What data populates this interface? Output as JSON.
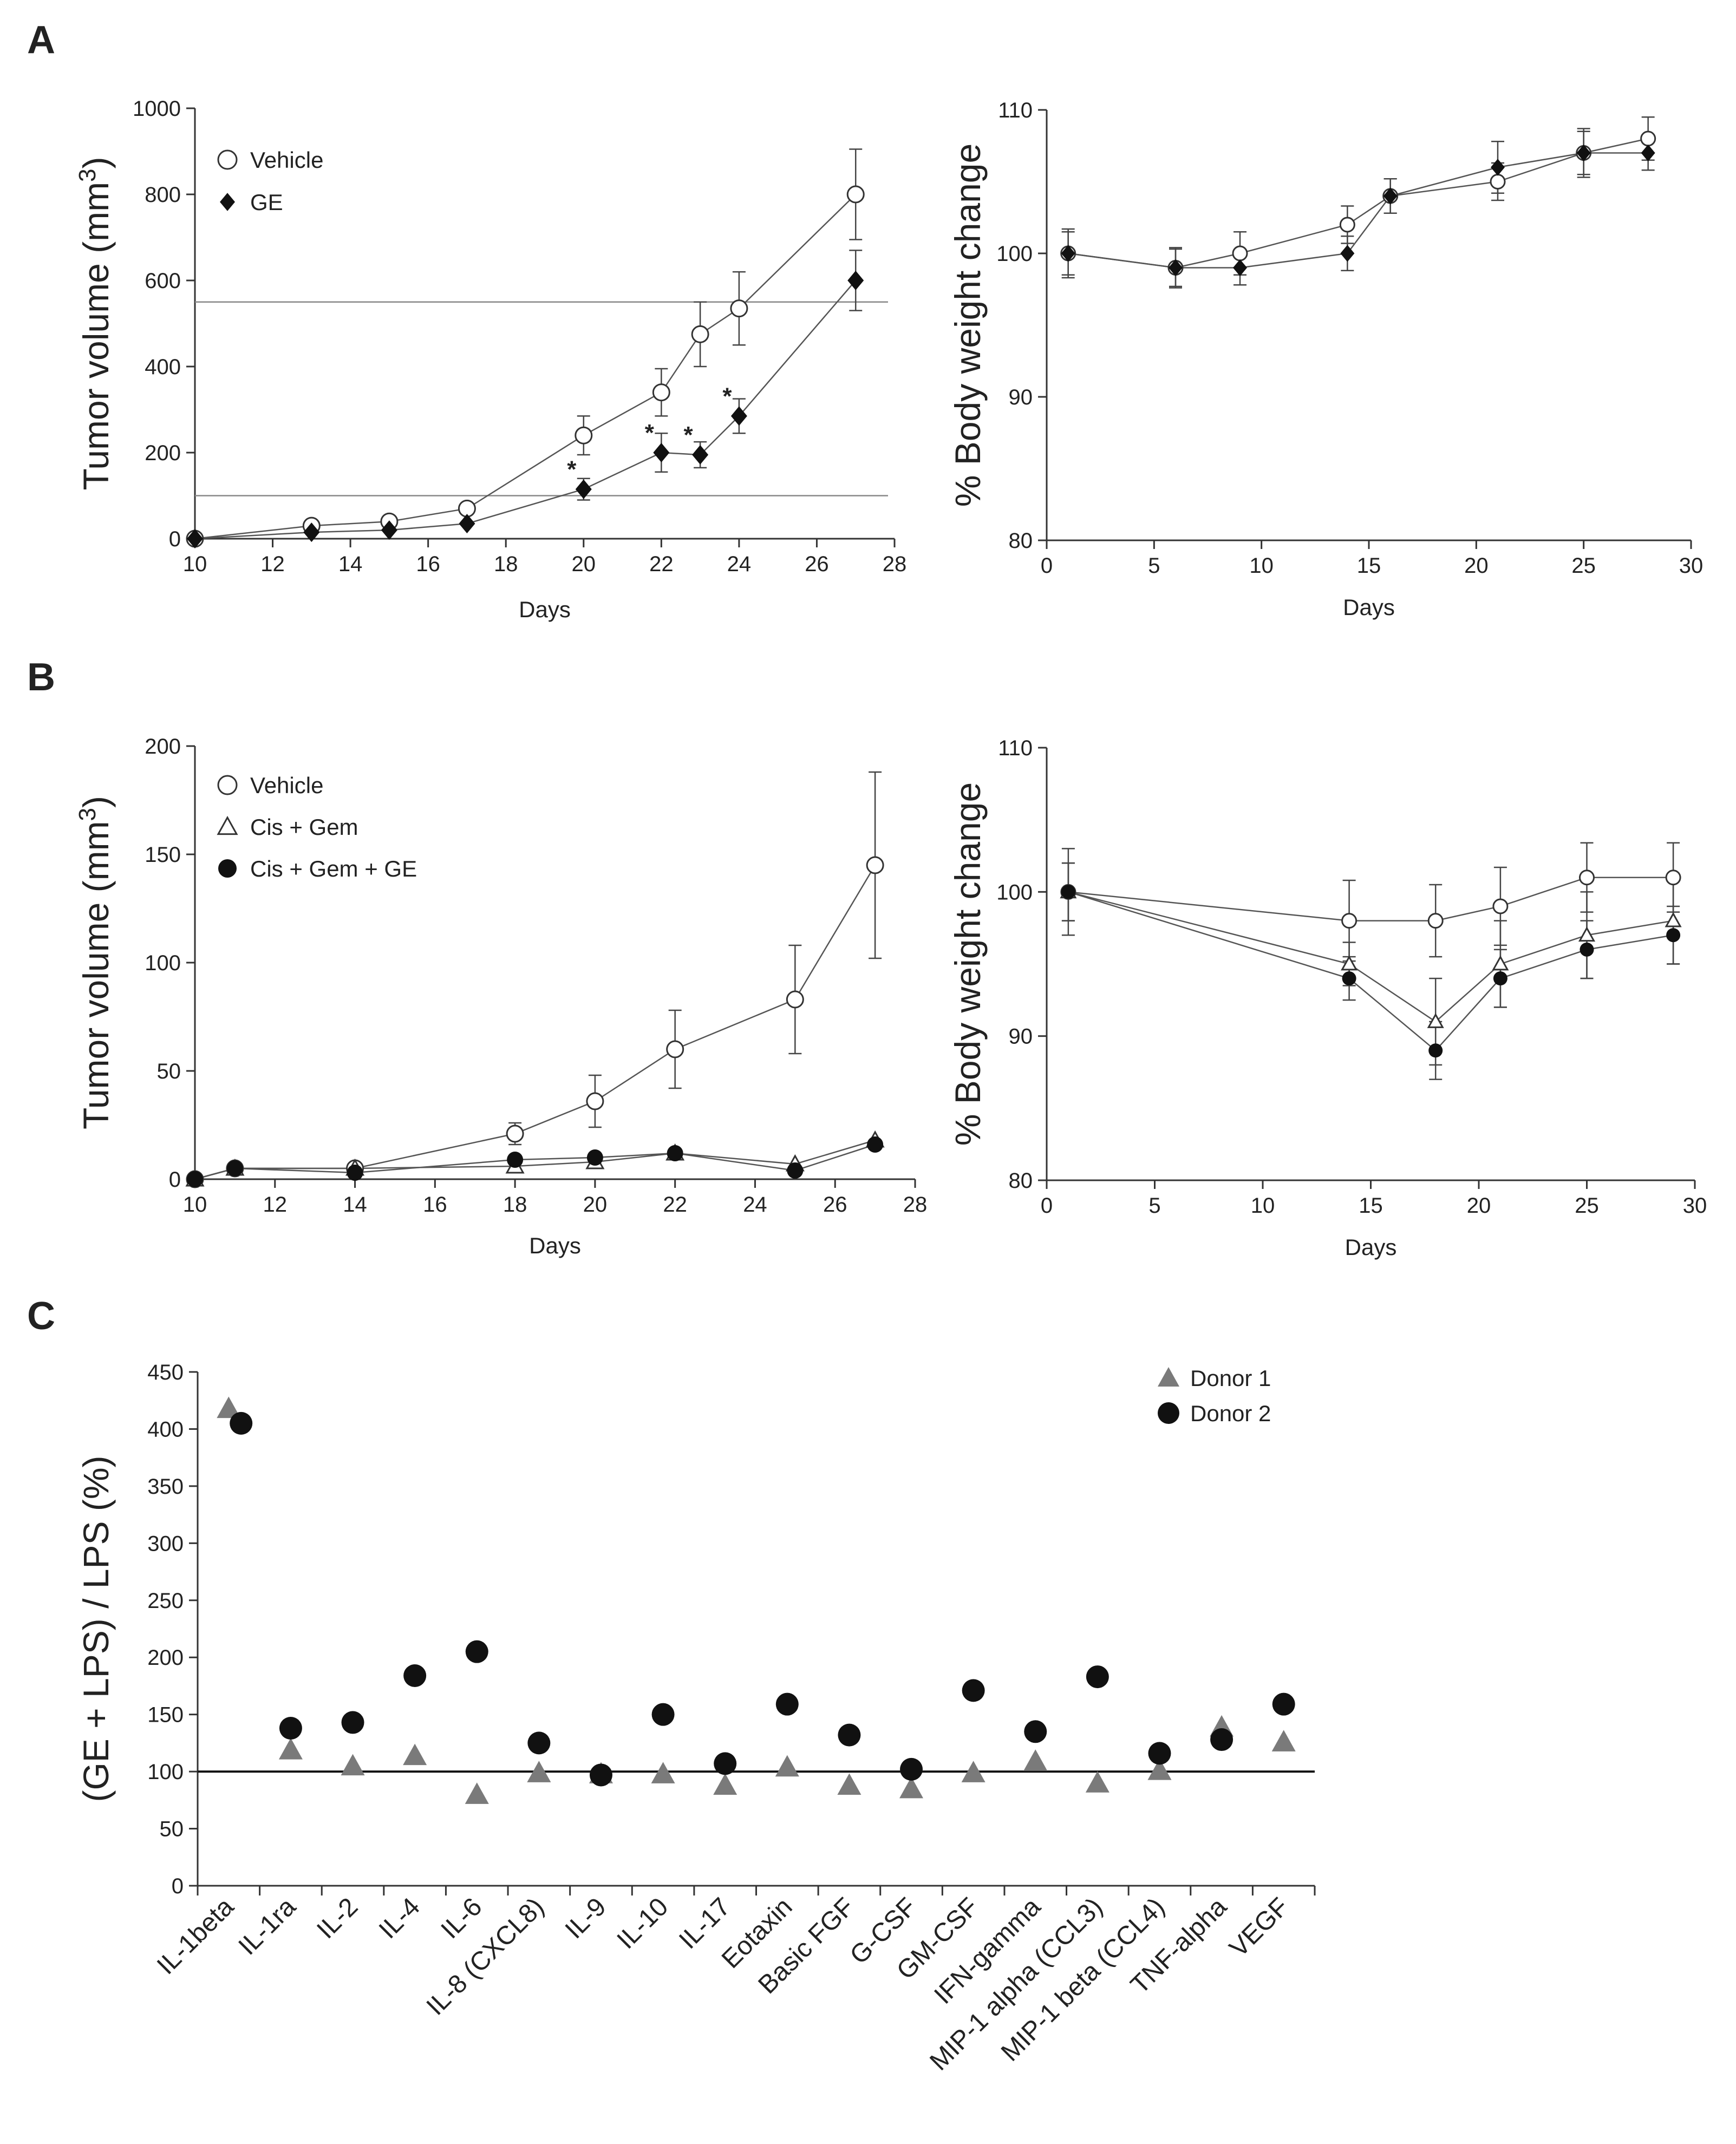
{
  "panel_labels": {
    "a": "A",
    "b": "B",
    "c": "C"
  },
  "chart_data": [
    {
      "id": "a1",
      "type": "line",
      "xlabel": "Days",
      "ylabel": "Tumor volume (mm",
      "ylabel_sup": "3",
      "ylabel_end": ")",
      "xlim": [
        10,
        28
      ],
      "ylim": [
        0,
        1000
      ],
      "xticks": [
        10,
        12,
        14,
        16,
        18,
        20,
        22,
        24,
        26,
        28
      ],
      "yticks": [
        0,
        200,
        400,
        600,
        800,
        1000
      ],
      "reference_lines": [
        550,
        100
      ],
      "legend": [
        {
          "label": "Vehicle",
          "marker": "open-circle"
        },
        {
          "label": "GE",
          "marker": "filled-diamond"
        }
      ],
      "series": [
        {
          "name": "Vehicle",
          "marker": "open-circle",
          "x": [
            10,
            13,
            15,
            17,
            20,
            22,
            23,
            24,
            27
          ],
          "y": [
            0,
            30,
            40,
            70,
            240,
            340,
            475,
            535,
            800
          ],
          "err": [
            0,
            0,
            0,
            0,
            45,
            55,
            75,
            85,
            105
          ]
        },
        {
          "name": "GE",
          "marker": "filled-diamond",
          "x": [
            10,
            13,
            15,
            17,
            20,
            22,
            23,
            24,
            27
          ],
          "y": [
            0,
            15,
            20,
            35,
            115,
            200,
            195,
            285,
            600
          ],
          "err": [
            0,
            0,
            0,
            0,
            25,
            45,
            30,
            40,
            70
          ]
        }
      ],
      "annotations": [
        {
          "text": "*",
          "x": 20,
          "y": 115
        },
        {
          "text": "*",
          "x": 22,
          "y": 200
        },
        {
          "text": "*",
          "x": 23,
          "y": 195
        },
        {
          "text": "*",
          "x": 24,
          "y": 285
        }
      ]
    },
    {
      "id": "a2",
      "type": "line",
      "xlabel": "Days",
      "ylabel": "% Body weight change",
      "xlim": [
        0,
        30
      ],
      "ylim": [
        80,
        110
      ],
      "xticks": [
        0,
        5,
        10,
        15,
        20,
        25,
        30
      ],
      "yticks": [
        80,
        90,
        100,
        110
      ],
      "series": [
        {
          "name": "Vehicle",
          "marker": "open-circle",
          "x": [
            1,
            6,
            9,
            14,
            16,
            21,
            25,
            28
          ],
          "y": [
            100,
            99,
            100,
            102,
            104,
            105,
            107,
            108
          ],
          "err": [
            1.5,
            1.3,
            1.5,
            1.3,
            1.2,
            1.3,
            1.5,
            1.5
          ]
        },
        {
          "name": "GE",
          "marker": "filled-diamond",
          "x": [
            1,
            6,
            9,
            14,
            16,
            21,
            25,
            28
          ],
          "y": [
            100,
            99,
            99,
            100,
            104,
            106,
            107,
            107
          ],
          "err": [
            1.7,
            1.4,
            1.2,
            1.2,
            1.2,
            1.8,
            1.7,
            1.2
          ]
        }
      ]
    },
    {
      "id": "b1",
      "type": "line",
      "xlabel": "Days",
      "ylabel": "Tumor volume (mm",
      "ylabel_sup": "3",
      "ylabel_end": ")",
      "xlim": [
        10,
        28
      ],
      "ylim": [
        0,
        200
      ],
      "xticks": [
        10,
        12,
        14,
        16,
        18,
        20,
        22,
        24,
        26,
        28
      ],
      "yticks": [
        0,
        50,
        100,
        150,
        200
      ],
      "legend": [
        {
          "label": "Vehicle",
          "marker": "open-circle"
        },
        {
          "label": "Cis + Gem",
          "marker": "open-triangle"
        },
        {
          "label": "Cis + Gem + GE",
          "marker": "filled-circle"
        }
      ],
      "series": [
        {
          "name": "Vehicle",
          "marker": "open-circle",
          "x": [
            10,
            11,
            14,
            18,
            20,
            22,
            25,
            27
          ],
          "y": [
            0,
            5,
            5,
            21,
            36,
            60,
            83,
            145
          ],
          "err": [
            0,
            0,
            0,
            5,
            12,
            18,
            25,
            43
          ]
        },
        {
          "name": "Cis + Gem",
          "marker": "open-triangle",
          "x": [
            10,
            11,
            14,
            18,
            20,
            22,
            25,
            27
          ],
          "y": [
            0,
            5,
            5,
            6,
            8,
            12,
            7,
            18
          ],
          "err": [
            0,
            0,
            0,
            0,
            0,
            0,
            0,
            0
          ]
        },
        {
          "name": "Cis + Gem + GE",
          "marker": "filled-circle",
          "x": [
            10,
            11,
            14,
            18,
            20,
            22,
            25,
            27
          ],
          "y": [
            0,
            5,
            3,
            9,
            10,
            12,
            4,
            16
          ],
          "err": [
            0,
            0,
            0,
            0,
            0,
            0,
            0,
            0
          ]
        }
      ]
    },
    {
      "id": "b2",
      "type": "line",
      "xlabel": "Days",
      "ylabel": "% Body weight change",
      "xlim": [
        0,
        30
      ],
      "ylim": [
        80,
        110
      ],
      "xticks": [
        0,
        5,
        10,
        15,
        20,
        25,
        30
      ],
      "yticks": [
        80,
        90,
        100,
        110
      ],
      "series": [
        {
          "name": "Vehicle",
          "marker": "open-circle",
          "x": [
            1,
            14,
            18,
            21,
            25,
            29
          ],
          "y": [
            100,
            98,
            98,
            99,
            101,
            101
          ],
          "err": [
            3,
            2.8,
            2.5,
            2.7,
            2.4,
            2.4
          ]
        },
        {
          "name": "Cis + Gem",
          "marker": "open-triangle",
          "x": [
            1,
            14,
            18,
            21,
            25,
            29
          ],
          "y": [
            100,
            95,
            91,
            95,
            97,
            98
          ],
          "err": [
            2,
            1.5,
            3,
            3,
            3,
            3
          ]
        },
        {
          "name": "Cis + Gem + GE",
          "marker": "filled-circle",
          "x": [
            1,
            14,
            18,
            21,
            25,
            29
          ],
          "y": [
            100,
            94,
            89,
            94,
            96,
            97
          ],
          "err": [
            2,
            1.5,
            2,
            2,
            2,
            2
          ]
        }
      ]
    },
    {
      "id": "c",
      "type": "scatter",
      "ylabel": "(GE + LPS) / LPS   (%)",
      "ylim": [
        0,
        450
      ],
      "yticks": [
        0,
        50,
        100,
        150,
        200,
        250,
        300,
        350,
        400,
        450
      ],
      "reference_line": 100,
      "categories": [
        "IL-1beta",
        "IL-1ra",
        "IL-2",
        "IL-4",
        "IL-6",
        "IL-8 (CXCL8)",
        "IL-9",
        "IL-10",
        "IL-17",
        "Eotaxin",
        "Basic FGF",
        "G-CSF",
        "GM-CSF",
        "IFN-gamma",
        "MIP-1 alpha (CCL3)",
        "MIP-1 beta (CCL4)",
        "TNF-alpha",
        "VEGF"
      ],
      "legend": [
        {
          "label": "Donor  1",
          "marker": "gray-triangle"
        },
        {
          "label": "Donor  2",
          "marker": "black-circle"
        }
      ],
      "series": [
        {
          "name": "Donor 1",
          "marker": "gray-triangle",
          "x": [
            0,
            1,
            2,
            3,
            4,
            5,
            6,
            7,
            8,
            9,
            10,
            11,
            12,
            13,
            14,
            15,
            16,
            17
          ],
          "y": [
            418,
            119,
            105,
            114,
            80,
            99,
            98,
            98,
            88,
            104,
            88,
            85,
            99,
            109,
            90,
            101,
            139,
            126
          ]
        },
        {
          "name": "Donor 2",
          "marker": "black-circle",
          "x": [
            0.2,
            1,
            2,
            3,
            4,
            5,
            6,
            7,
            8,
            9,
            10,
            11,
            12,
            13,
            14,
            15,
            16,
            17
          ],
          "y": [
            405,
            138,
            143,
            184,
            205,
            125,
            97,
            150,
            107,
            159,
            132,
            102,
            171,
            135,
            183,
            116,
            128,
            159
          ]
        }
      ]
    }
  ]
}
